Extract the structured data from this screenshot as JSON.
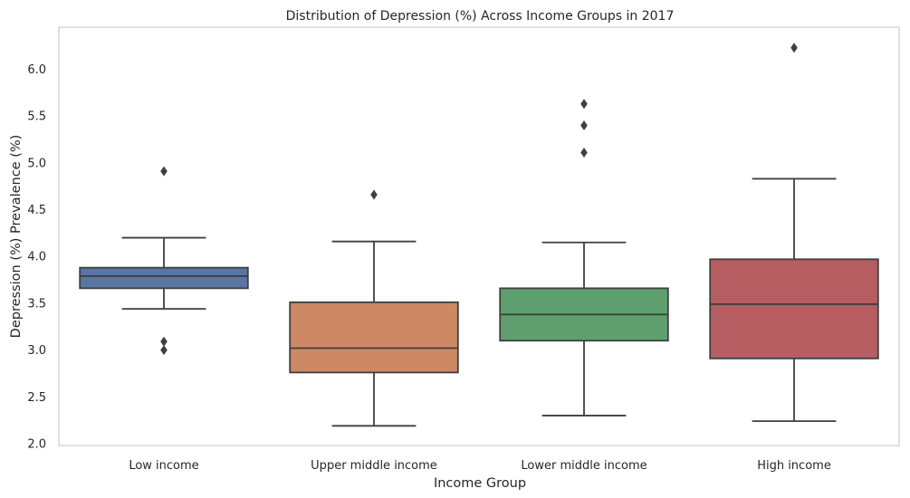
{
  "chart_data": {
    "type": "box",
    "title": "Distribution of Depression (%) Across Income Groups in 2017",
    "xlabel": "Income Group",
    "ylabel": "Depression (%) Prevalence (%)",
    "ylim": [
      1.98,
      6.45
    ],
    "yticks": [
      "2.0",
      "2.5",
      "3.0",
      "3.5",
      "4.0",
      "4.5",
      "5.0",
      "5.5",
      "6.0"
    ],
    "ytick_values": [
      2.0,
      2.5,
      3.0,
      3.5,
      4.0,
      4.5,
      5.0,
      5.5,
      6.0
    ],
    "grid": false,
    "categories": [
      "Low income",
      "Upper middle income",
      "Lower middle income",
      "High income"
    ],
    "series": [
      {
        "category": "Low income",
        "color": "#5875a4",
        "whisker_low": 3.44,
        "q1": 3.66,
        "median": 3.79,
        "q3": 3.88,
        "whisker_high": 4.2,
        "outliers": [
          4.91,
          3.09,
          3.0
        ]
      },
      {
        "category": "Upper middle income",
        "color": "#cc8963",
        "whisker_low": 2.19,
        "q1": 2.76,
        "median": 3.02,
        "q3": 3.51,
        "whisker_high": 4.16,
        "outliers": [
          4.66
        ]
      },
      {
        "category": "Lower middle income",
        "color": "#5f9e6e",
        "whisker_low": 2.3,
        "q1": 3.1,
        "median": 3.38,
        "q3": 3.66,
        "whisker_high": 4.15,
        "outliers": [
          5.63,
          5.4,
          5.11
        ]
      },
      {
        "category": "High income",
        "color": "#b55d60",
        "whisker_low": 2.24,
        "q1": 2.91,
        "median": 3.49,
        "q3": 3.97,
        "whisker_high": 4.83,
        "outliers": [
          6.23
        ]
      }
    ]
  }
}
